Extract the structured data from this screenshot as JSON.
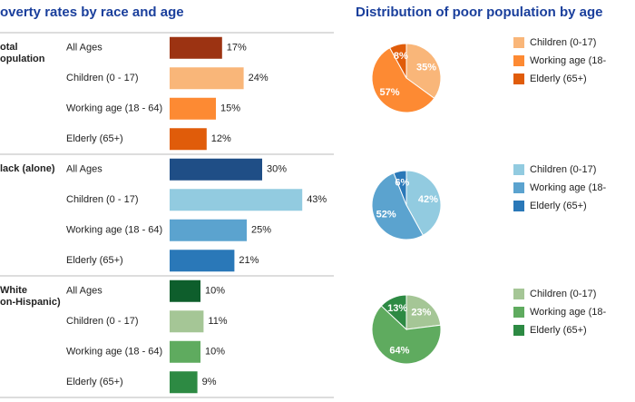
{
  "chart_data": [
    {
      "type": "bar",
      "title": "overty rates by race and age",
      "groups": [
        {
          "label_lines": [
            "otal",
            "opulation"
          ],
          "categories": [
            "All Ages",
            "Children (0 - 17)",
            "Working age (18 - 64)",
            "Elderly (65+)"
          ],
          "values": [
            17,
            24,
            15,
            12
          ],
          "value_labels": [
            "17%",
            "24%",
            "15%",
            "12%"
          ],
          "colors": [
            "#9c3312",
            "#f9b679",
            "#fd8a33",
            "#e05c0a"
          ]
        },
        {
          "label_lines": [
            "lack (alone)"
          ],
          "categories": [
            "All Ages",
            "Children (0 - 17)",
            "Working age (18 - 64)",
            "Elderly (65+)"
          ],
          "values": [
            30,
            43,
            25,
            21
          ],
          "value_labels": [
            "30%",
            "43%",
            "25%",
            "21%"
          ],
          "colors": [
            "#1f4e86",
            "#92cbe0",
            "#5ba3cf",
            "#2a78b8"
          ]
        },
        {
          "label_lines": [
            "White",
            "on-Hispanic)"
          ],
          "categories": [
            "All Ages",
            "Children (0 - 17)",
            "Working age (18 - 64)",
            "Elderly (65+)"
          ],
          "values": [
            10,
            11,
            10,
            9
          ],
          "value_labels": [
            "10%",
            "11%",
            "10%",
            "9%"
          ],
          "colors": [
            "#0e5e2c",
            "#a5c696",
            "#5fab5f",
            "#2d8a43"
          ]
        }
      ]
    },
    {
      "type": "pie",
      "title": "Distribution of poor population by age",
      "categories": [
        "Children (0-17)",
        "Working age (18-",
        "Elderly (65+)"
      ],
      "values": [
        35,
        57,
        8
      ],
      "value_labels": [
        "35%",
        "57%",
        "8%"
      ],
      "colors": [
        "#f9b679",
        "#fd8a33",
        "#e05c0a"
      ]
    },
    {
      "type": "pie",
      "categories": [
        "Children (0-17)",
        "Working age (18-",
        "Elderly (65+)"
      ],
      "values": [
        42,
        52,
        6
      ],
      "value_labels": [
        "42%",
        "52%",
        "6%"
      ],
      "colors": [
        "#92cbe0",
        "#5ba3cf",
        "#2a78b8"
      ]
    },
    {
      "type": "pie",
      "categories": [
        "Children (0-17)",
        "Working age (18-",
        "Elderly (65+)"
      ],
      "values": [
        23,
        64,
        13
      ],
      "value_labels": [
        "23%",
        "64%",
        "13%"
      ],
      "colors": [
        "#a5c696",
        "#5fab5f",
        "#2d8a43"
      ]
    }
  ]
}
